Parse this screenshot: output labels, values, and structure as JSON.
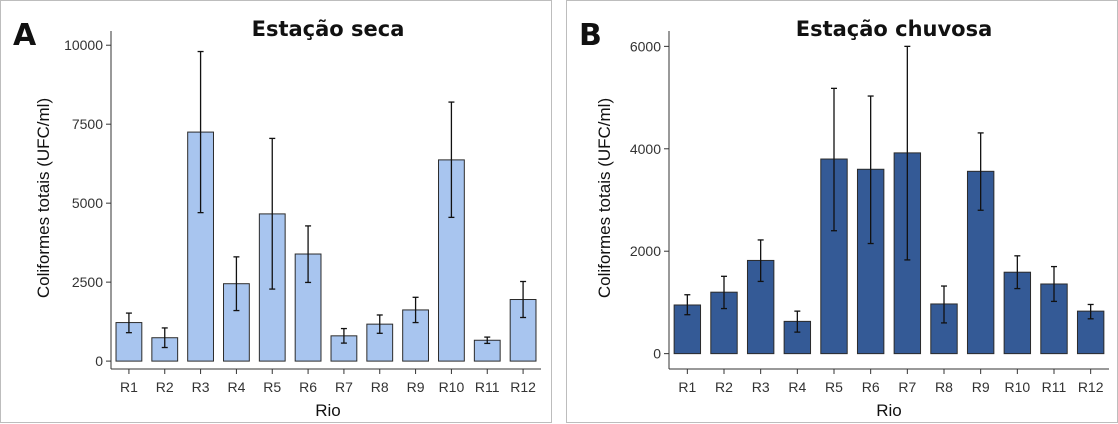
{
  "chart_data": [
    {
      "type": "bar",
      "panel_letter": "A",
      "title": "Estação seca",
      "xlabel": "Rio",
      "ylabel": "Coliformes totais (UFC/ml)",
      "categories": [
        "R1",
        "R2",
        "R3",
        "R4",
        "R5",
        "R6",
        "R7",
        "R8",
        "R9",
        "R10",
        "R11",
        "R12"
      ],
      "values": [
        1220,
        740,
        7250,
        2450,
        4660,
        3390,
        800,
        1170,
        1620,
        6370,
        660,
        1950
      ],
      "error_low": [
        900,
        430,
        4700,
        1600,
        2280,
        2490,
        570,
        880,
        1220,
        4550,
        560,
        1380
      ],
      "error_high": [
        1520,
        1050,
        9800,
        3300,
        7050,
        4280,
        1030,
        1460,
        2020,
        8200,
        760,
        2520
      ],
      "yticks": [
        0,
        2500,
        5000,
        7500,
        10000
      ],
      "ylim": [
        -250,
        10450
      ],
      "bar_color": "#a8c5ef",
      "grid": false
    },
    {
      "type": "bar",
      "panel_letter": "B",
      "title": "Estação chuvosa",
      "xlabel": "Rio",
      "ylabel": "Coliformes totais (UFC/ml)",
      "categories": [
        "R1",
        "R2",
        "R3",
        "R4",
        "R5",
        "R6",
        "R7",
        "R8",
        "R9",
        "R10",
        "R11",
        "R12"
      ],
      "values": [
        950,
        1200,
        1820,
        630,
        3800,
        3600,
        3920,
        970,
        3560,
        1590,
        1360,
        830
      ],
      "error_low": [
        760,
        880,
        1410,
        420,
        2400,
        2150,
        1830,
        600,
        2800,
        1270,
        1020,
        680
      ],
      "error_high": [
        1150,
        1510,
        2220,
        830,
        5180,
        5030,
        6000,
        1320,
        4310,
        1910,
        1700,
        960
      ],
      "yticks": [
        0,
        2000,
        4000,
        6000
      ],
      "ylim": [
        -300,
        6300
      ],
      "bar_color": "#345a96",
      "grid": false
    }
  ]
}
